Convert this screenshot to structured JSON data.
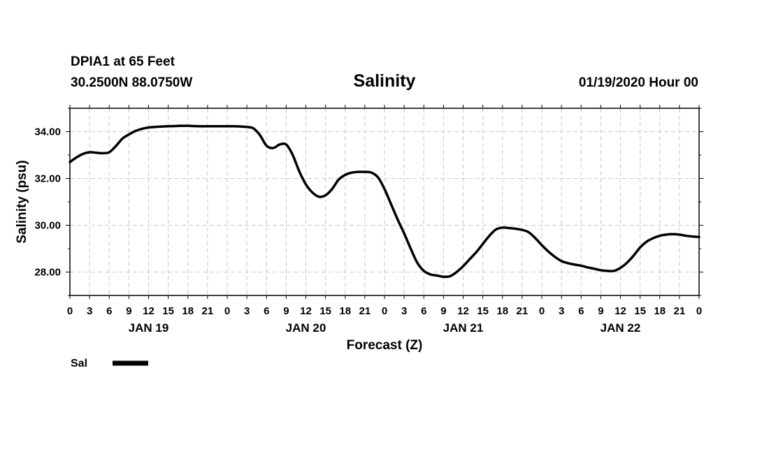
{
  "chart_data": {
    "type": "line",
    "station_label": "DPIA1 at 65 Feet",
    "coordinates": "30.2500N 88.0750W",
    "title": "Salinity",
    "issued": "01/19/2020 Hour 00",
    "ylabel": "Salinity (psu)",
    "xlabel": "Forecast (Z)",
    "ylim": [
      27.0,
      35.0
    ],
    "y_ticks": [
      "28.00",
      "30.00",
      "32.00",
      "34.00"
    ],
    "y_tick_values": [
      28,
      30,
      32,
      34
    ],
    "x_range_hours": [
      0,
      96
    ],
    "x_tick_labels": [
      "0",
      "3",
      "6",
      "9",
      "12",
      "15",
      "18",
      "21",
      "0",
      "3",
      "6",
      "9",
      "12",
      "15",
      "18",
      "21",
      "0",
      "3",
      "6",
      "9",
      "12",
      "15",
      "18",
      "21",
      "0",
      "3",
      "6",
      "9",
      "12",
      "15",
      "18",
      "21",
      "0"
    ],
    "days": [
      {
        "label": "JAN 19",
        "hour": 12
      },
      {
        "label": "JAN 20",
        "hour": 36
      },
      {
        "label": "JAN 21",
        "hour": 60
      },
      {
        "label": "JAN 22",
        "hour": 84
      }
    ],
    "grid": true,
    "legend": {
      "placement": "bottom-left",
      "entries": [
        {
          "name": "Sal",
          "color": "#000000"
        }
      ]
    },
    "series": [
      {
        "name": "Sal",
        "color": "#000000",
        "x": [
          0,
          1,
          2,
          3,
          4,
          5,
          6,
          7,
          8,
          9,
          10,
          11,
          12,
          13,
          14,
          15,
          16,
          17,
          18,
          19,
          20,
          21,
          22,
          23,
          24,
          25,
          26,
          27,
          28,
          29,
          30,
          31,
          32,
          33,
          34,
          35,
          36,
          37,
          38,
          39,
          40,
          41,
          42,
          43,
          44,
          45,
          46,
          47,
          48,
          49,
          50,
          51,
          52,
          53,
          54,
          55,
          56,
          57,
          58,
          59,
          60,
          61,
          62,
          63,
          64,
          65,
          66,
          67,
          68,
          69,
          70,
          71,
          72,
          73,
          74,
          75,
          76,
          77,
          78,
          79,
          80,
          81,
          82,
          83,
          84,
          85,
          86,
          87,
          88,
          89,
          90,
          91,
          92,
          93,
          94,
          95,
          96
        ],
        "values": [
          32.7,
          32.9,
          33.05,
          33.12,
          33.1,
          33.08,
          33.12,
          33.38,
          33.7,
          33.88,
          34.03,
          34.12,
          34.18,
          34.2,
          34.22,
          34.23,
          34.24,
          34.25,
          34.25,
          34.24,
          34.23,
          34.23,
          34.23,
          34.23,
          34.23,
          34.23,
          34.22,
          34.2,
          34.14,
          33.85,
          33.4,
          33.3,
          33.45,
          33.45,
          33.0,
          32.3,
          31.75,
          31.4,
          31.22,
          31.28,
          31.55,
          31.95,
          32.15,
          32.25,
          32.28,
          32.28,
          32.25,
          32.05,
          31.55,
          30.9,
          30.25,
          29.65,
          29.0,
          28.4,
          28.05,
          27.9,
          27.85,
          27.8,
          27.82,
          28.0,
          28.25,
          28.55,
          28.85,
          29.2,
          29.55,
          29.82,
          29.9,
          29.88,
          29.85,
          29.8,
          29.7,
          29.45,
          29.15,
          28.88,
          28.65,
          28.47,
          28.38,
          28.32,
          28.27,
          28.2,
          28.14,
          28.08,
          28.05,
          28.05,
          28.18,
          28.4,
          28.7,
          29.05,
          29.3,
          29.45,
          29.55,
          29.6,
          29.62,
          29.6,
          29.55,
          29.52,
          29.5
        ]
      }
    ]
  }
}
